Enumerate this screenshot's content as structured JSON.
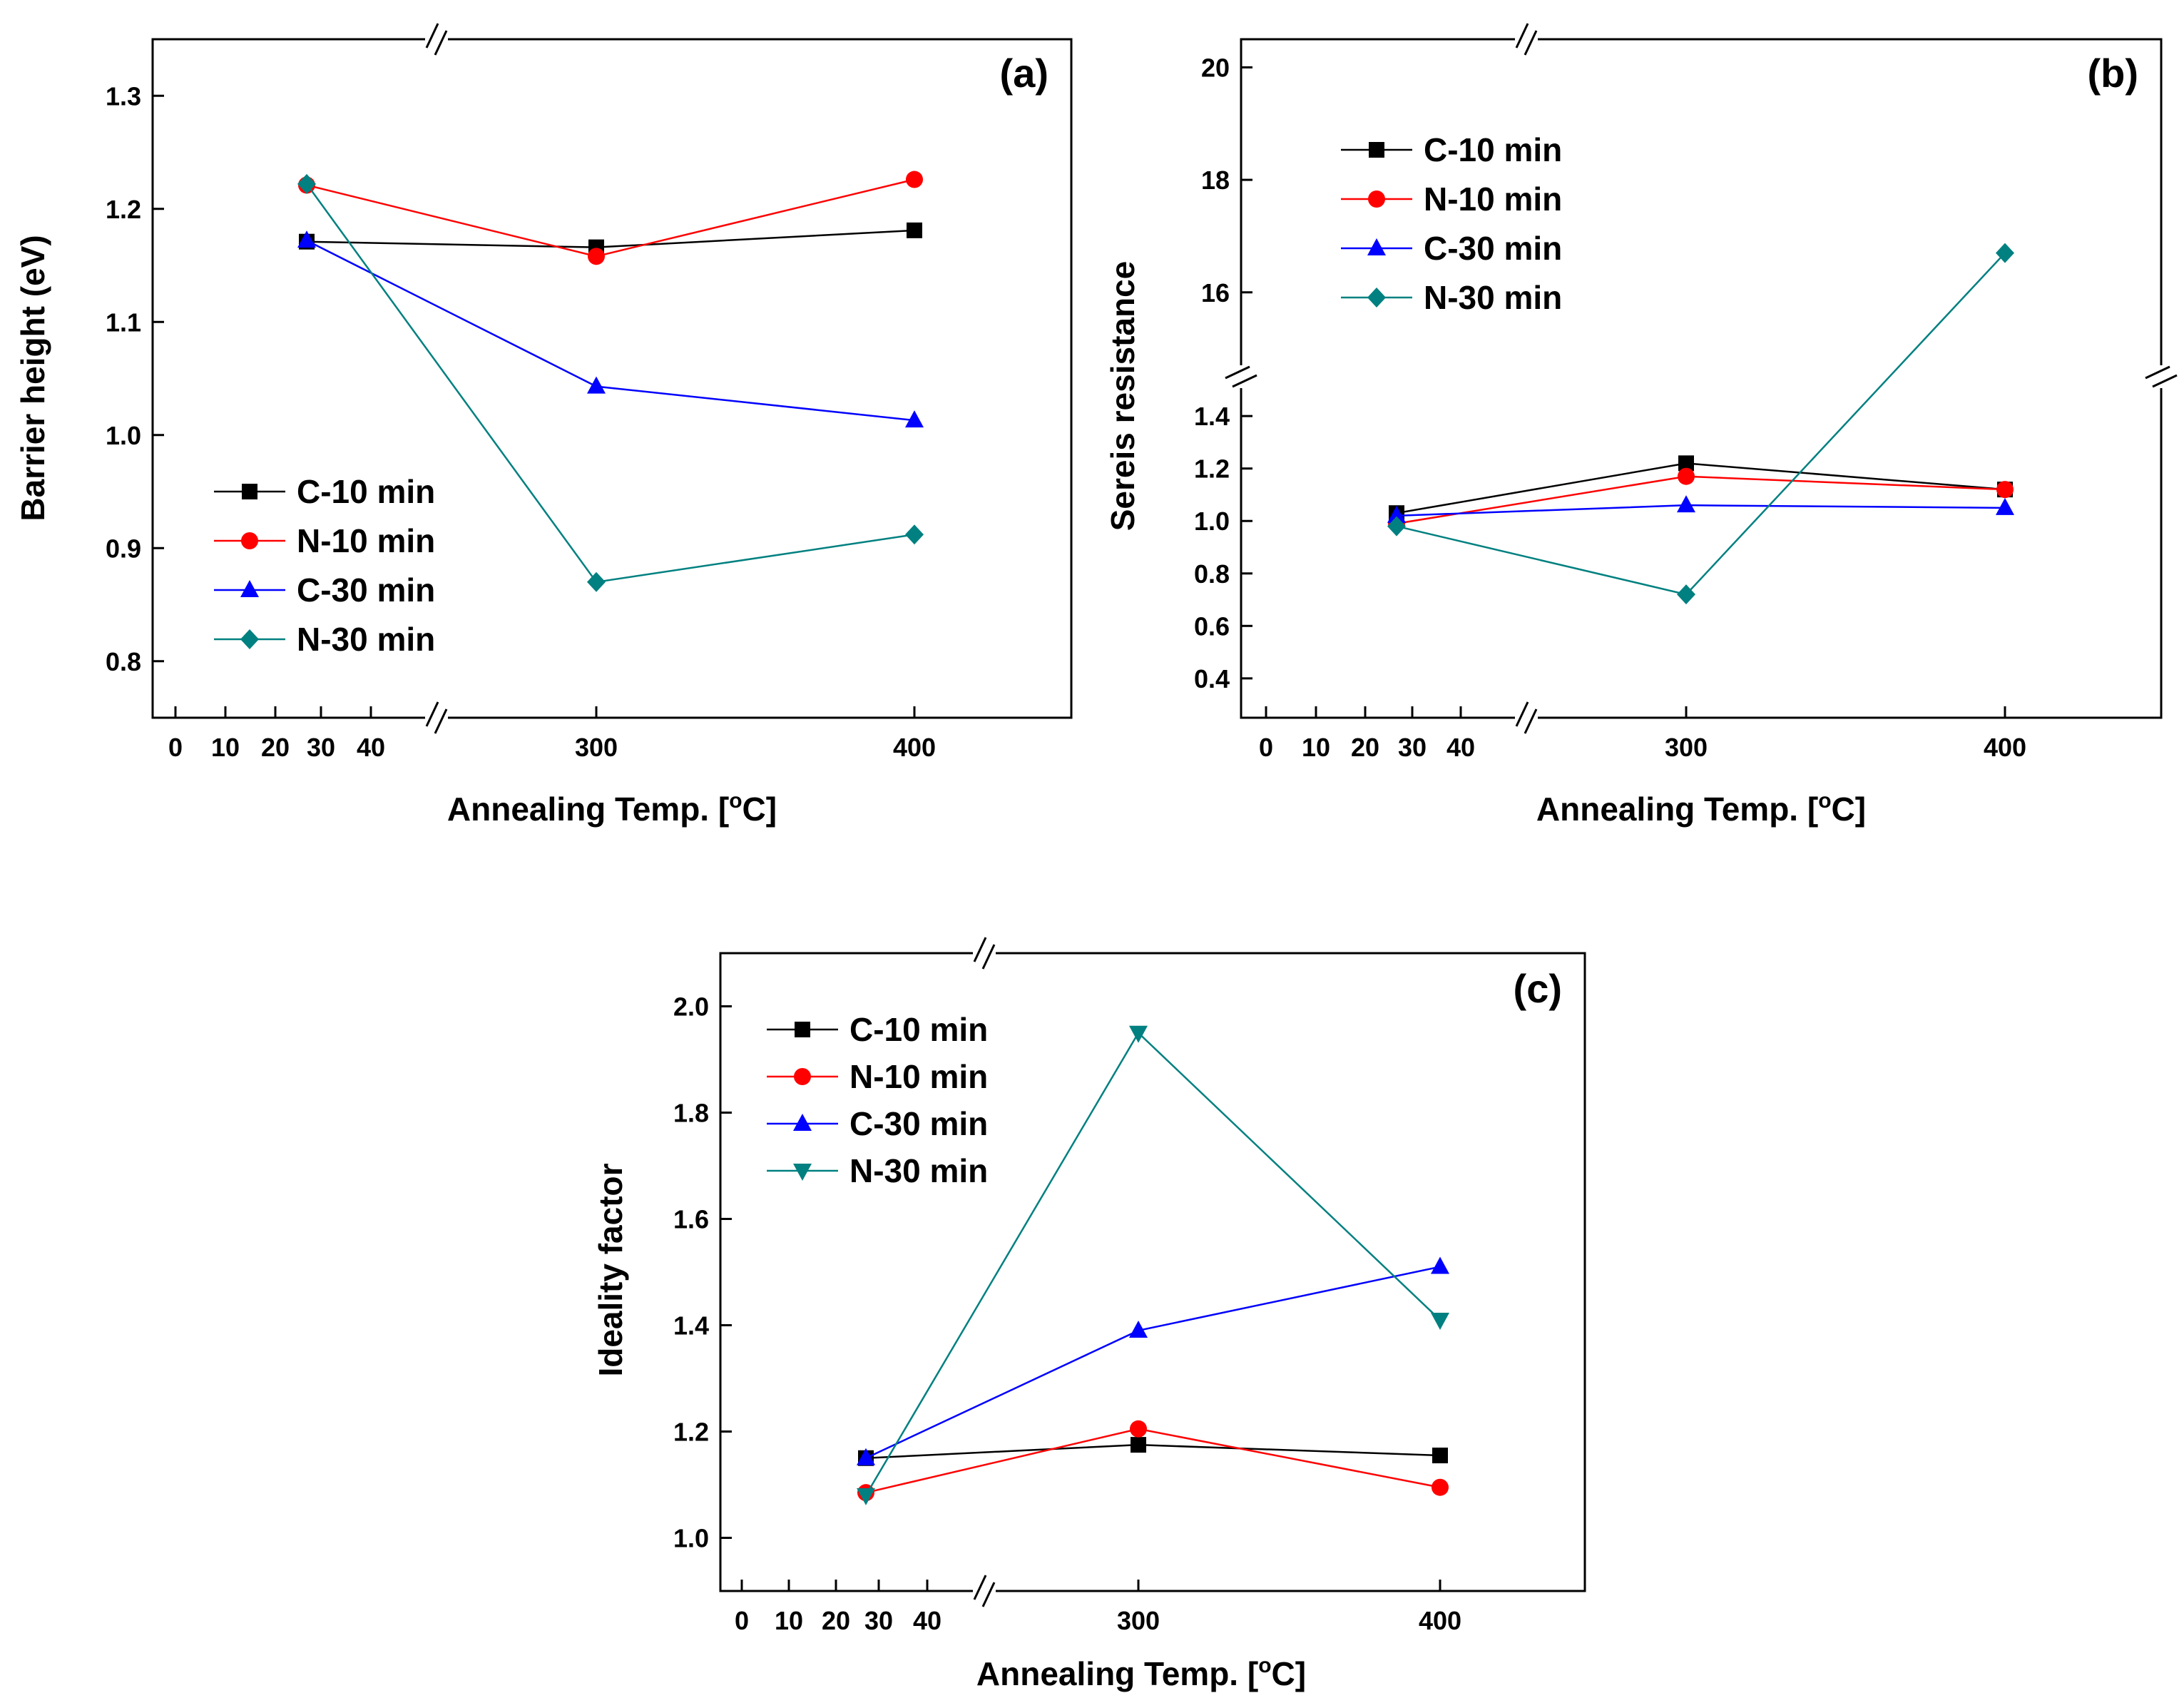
{
  "chart_data": [
    {
      "type": "line",
      "panel_label": "(a)",
      "xlabel": "Annealing Temp. [",
      "xlabel_sup": "o",
      "xlabel_end": "C]",
      "ylabel": "Barrier height (eV)",
      "x_ticks": [
        0,
        10,
        20,
        30,
        40,
        300,
        400
      ],
      "x_tick_labels": [
        "0",
        "10",
        "20",
        "30",
        "40",
        "300",
        "400"
      ],
      "y_ticks": [
        0.8,
        0.9,
        1.0,
        1.1,
        1.2,
        1.3
      ],
      "y_tick_labels": [
        "0.8",
        "0.9",
        "1.0",
        "1.1",
        "1.2",
        "1.3"
      ],
      "ylim": [
        0.75,
        1.35
      ],
      "legend_position": "bottom-left",
      "series": [
        {
          "name": "C-10 min",
          "color": "#000000",
          "marker": "square",
          "x": [
            27,
            300,
            400
          ],
          "values": [
            1.171,
            1.166,
            1.181
          ]
        },
        {
          "name": "N-10 min",
          "color": "#ff0000",
          "marker": "circle",
          "x": [
            27,
            300,
            400
          ],
          "values": [
            1.221,
            1.158,
            1.226
          ]
        },
        {
          "name": "C-30 min",
          "color": "#0000ff",
          "marker": "triangle-up",
          "x": [
            27,
            300,
            400
          ],
          "values": [
            1.172,
            1.043,
            1.013
          ]
        },
        {
          "name": "N-30 min",
          "color": "#008080",
          "marker": "diamond",
          "x": [
            27,
            300,
            400
          ],
          "values": [
            1.222,
            0.87,
            0.912
          ]
        }
      ]
    },
    {
      "type": "line",
      "panel_label": "(b)",
      "xlabel": "Annealing Temp. [",
      "xlabel_sup": "o",
      "xlabel_end": "C]",
      "ylabel": "Sereis resistance",
      "x_ticks": [
        0,
        10,
        20,
        30,
        40,
        300,
        400
      ],
      "x_tick_labels": [
        "0",
        "10",
        "20",
        "30",
        "40",
        "300",
        "400"
      ],
      "y_ticks": [
        0.4,
        0.6,
        0.8,
        1.0,
        1.2,
        1.4,
        16,
        18,
        20
      ],
      "y_tick_labels": [
        "0.4",
        "0.6",
        "0.8",
        "1.0",
        "1.2",
        "1.4",
        "16",
        "18",
        "20"
      ],
      "y_break_lower": [
        0.25,
        1.55
      ],
      "y_break_upper": [
        14.5,
        20.5
      ],
      "legend_position": "top-left",
      "series": [
        {
          "name": "C-10 min",
          "color": "#000000",
          "marker": "square",
          "x": [
            27,
            300,
            400
          ],
          "values": [
            1.03,
            1.22,
            1.12
          ]
        },
        {
          "name": "N-10 min",
          "color": "#ff0000",
          "marker": "circle",
          "x": [
            27,
            300,
            400
          ],
          "values": [
            0.99,
            1.17,
            1.12
          ]
        },
        {
          "name": "C-30 min",
          "color": "#0000ff",
          "marker": "triangle-up",
          "x": [
            27,
            300,
            400
          ],
          "values": [
            1.02,
            1.06,
            1.05
          ]
        },
        {
          "name": "N-30 min",
          "color": "#008080",
          "marker": "diamond",
          "x": [
            27,
            300,
            400
          ],
          "values": [
            0.98,
            0.72,
            16.7
          ]
        }
      ]
    },
    {
      "type": "line",
      "panel_label": "(c)",
      "xlabel": "Annealing Temp. [",
      "xlabel_sup": "o",
      "xlabel_end": "C]",
      "ylabel": "Ideality factor",
      "x_ticks": [
        0,
        10,
        20,
        30,
        40,
        300,
        400
      ],
      "x_tick_labels": [
        "0",
        "10",
        "20",
        "30",
        "40",
        "300",
        "400"
      ],
      "y_ticks": [
        1.0,
        1.2,
        1.4,
        1.6,
        1.8,
        2.0
      ],
      "y_tick_labels": [
        "1.0",
        "1.2",
        "1.4",
        "1.6",
        "1.8",
        "2.0"
      ],
      "ylim": [
        0.9,
        2.1
      ],
      "legend_position": "top-left",
      "series": [
        {
          "name": "C-10 min",
          "color": "#000000",
          "marker": "square",
          "x": [
            27,
            300,
            400
          ],
          "values": [
            1.15,
            1.175,
            1.155
          ]
        },
        {
          "name": "N-10 min",
          "color": "#ff0000",
          "marker": "circle",
          "x": [
            27,
            300,
            400
          ],
          "values": [
            1.085,
            1.205,
            1.095
          ]
        },
        {
          "name": "C-30 min",
          "color": "#0000ff",
          "marker": "triangle-up",
          "x": [
            27,
            300,
            400
          ],
          "values": [
            1.15,
            1.39,
            1.51
          ]
        },
        {
          "name": "N-30 min",
          "color": "#008080",
          "marker": "triangle-down",
          "x": [
            27,
            300,
            400
          ],
          "values": [
            1.08,
            1.95,
            1.41
          ]
        }
      ]
    }
  ]
}
